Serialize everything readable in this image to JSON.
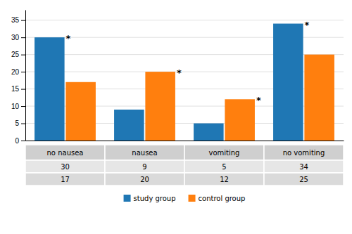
{
  "chart_data": {
    "type": "bar",
    "categories": [
      "no nausea",
      "nausea",
      "vomiting",
      "no vomiting"
    ],
    "series": [
      {
        "name": "study group",
        "values": [
          30,
          9,
          5,
          34
        ]
      },
      {
        "name": "control group",
        "values": [
          17,
          20,
          12,
          25
        ]
      }
    ],
    "annotations": [
      "*",
      "*",
      "*",
      "*"
    ],
    "ylim": [
      0,
      38
    ],
    "yticks": [
      0,
      5,
      10,
      15,
      20,
      25,
      30,
      35
    ],
    "grid": true,
    "legend": "bottom"
  }
}
